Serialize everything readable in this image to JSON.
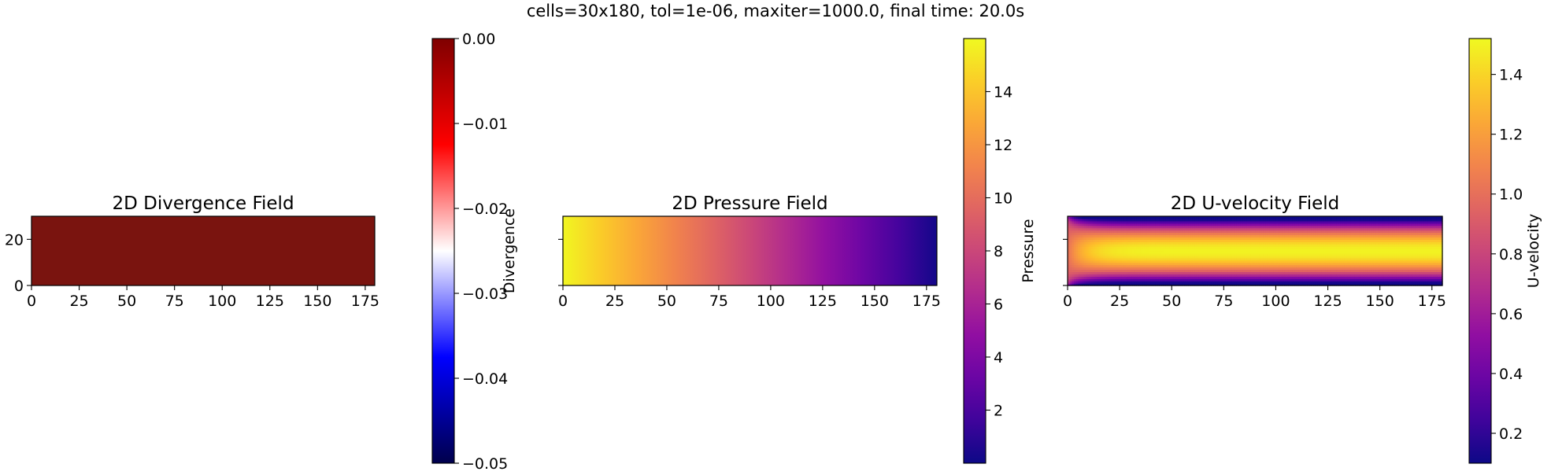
{
  "figure": {
    "suptitle": "cells=30x180, tol=1e-06, maxiter=1000.0, final time: 20.0s"
  },
  "chart_data": [
    {
      "type": "heatmap",
      "title": "2D Divergence Field",
      "grid_shape": [
        30,
        180
      ],
      "x_ticks": [
        "0",
        "25",
        "50",
        "75",
        "100",
        "125",
        "150",
        "175"
      ],
      "y_ticks": [
        "0",
        "20"
      ],
      "xlim": [
        0,
        180
      ],
      "ylim": [
        0,
        30
      ],
      "field": "uniform",
      "value": 0.0,
      "colormap": "seismic",
      "colorbar": {
        "label": "Divergence",
        "range": [
          -0.05,
          0.0
        ],
        "ticks": [
          "0.00",
          "−0.01",
          "−0.02",
          "−0.03",
          "−0.04",
          "−0.05"
        ],
        "tick_values": [
          0.0,
          -0.01,
          -0.02,
          -0.03,
          -0.04,
          -0.05
        ],
        "colors": [
          "#00004c",
          "#0000ff",
          "#ffffff",
          "#ff0000",
          "#7f0000"
        ]
      },
      "fill_color": "#7a140f"
    },
    {
      "type": "heatmap",
      "title": "2D Pressure Field",
      "grid_shape": [
        30,
        180
      ],
      "x_ticks": [
        "0",
        "25",
        "50",
        "75",
        "100",
        "125",
        "150",
        "175"
      ],
      "y_ticks": [
        "",
        ""
      ],
      "xlim": [
        0,
        180
      ],
      "ylim": [
        0,
        30
      ],
      "field": "linear_decrease_along_x",
      "value_range": [
        0.2,
        15.9
      ],
      "colormap": "plasma",
      "colorbar": {
        "label": "Pressure",
        "range": [
          0.0,
          16.0
        ],
        "ticks": [
          "2",
          "4",
          "6",
          "8",
          "10",
          "12",
          "14"
        ],
        "tick_values": [
          2,
          4,
          6,
          8,
          10,
          12,
          14
        ],
        "colors": [
          "#0d0887",
          "#6a00a8",
          "#b12a90",
          "#e16462",
          "#fca636",
          "#f0f921"
        ]
      }
    },
    {
      "type": "heatmap",
      "title": "2D U-velocity Field",
      "grid_shape": [
        30,
        180
      ],
      "x_ticks": [
        "0",
        "25",
        "50",
        "75",
        "100",
        "125",
        "150",
        "175"
      ],
      "y_ticks": [
        "",
        ""
      ],
      "xlim": [
        0,
        180
      ],
      "ylim": [
        0,
        30
      ],
      "field": "developing_channel_flow",
      "value_range": [
        0.1,
        1.5
      ],
      "colormap": "plasma",
      "colorbar": {
        "label": "U-velocity",
        "range": [
          0.1,
          1.52
        ],
        "ticks": [
          "0.2",
          "0.4",
          "0.6",
          "0.8",
          "1.0",
          "1.2",
          "1.4"
        ],
        "tick_values": [
          0.2,
          0.4,
          0.6,
          0.8,
          1.0,
          1.2,
          1.4
        ],
        "colors": [
          "#0d0887",
          "#6a00a8",
          "#b12a90",
          "#e16462",
          "#fca636",
          "#f0f921"
        ]
      }
    }
  ]
}
